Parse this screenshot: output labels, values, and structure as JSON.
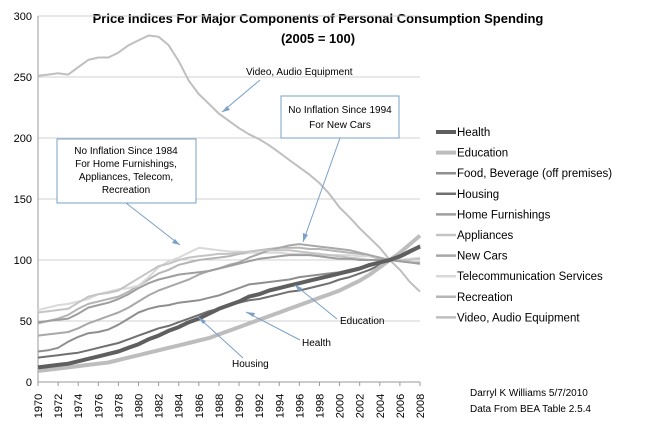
{
  "chart_data": {
    "type": "line",
    "title": "Price Indices For Major Components of Personal Consumption Spending",
    "subtitle": "(2005 = 100)",
    "xlabel": "",
    "ylabel": "",
    "ylim": [
      0,
      300
    ],
    "y_ticks": [
      "0",
      "50",
      "100",
      "150",
      "200",
      "250",
      "300"
    ],
    "x": [
      1970,
      1971,
      1972,
      1973,
      1974,
      1975,
      1976,
      1977,
      1978,
      1979,
      1980,
      1981,
      1982,
      1983,
      1984,
      1985,
      1986,
      1987,
      1988,
      1989,
      1990,
      1991,
      1992,
      1993,
      1994,
      1995,
      1996,
      1997,
      1998,
      1999,
      2000,
      2001,
      2002,
      2003,
      2004,
      2005,
      2006,
      2007,
      2008
    ],
    "x_ticks": [
      "1970",
      "1972",
      "1974",
      "1976",
      "1978",
      "1980",
      "1982",
      "1984",
      "1986",
      "1988",
      "1990",
      "1992",
      "1994",
      "1996",
      "1998",
      "2000",
      "2002",
      "2004",
      "2006",
      "2008"
    ],
    "grid": true,
    "legend_position": "right",
    "series": [
      {
        "name": "Health",
        "color": "#5f5f5f",
        "width": 4,
        "values": [
          12,
          13,
          14,
          15,
          17,
          19,
          21,
          23,
          25,
          28,
          31,
          35,
          38,
          42,
          45,
          49,
          52,
          56,
          60,
          63,
          66,
          70,
          72,
          75,
          77,
          79,
          81,
          83,
          85,
          87,
          89,
          91,
          93,
          96,
          98,
          100,
          103,
          107,
          111
        ]
      },
      {
        "name": "Education",
        "color": "#bdbdbd",
        "width": 4,
        "values": [
          9,
          10,
          11,
          12,
          13,
          14,
          15,
          16,
          18,
          20,
          22,
          24,
          26,
          28,
          30,
          32,
          34,
          36,
          39,
          42,
          45,
          48,
          51,
          54,
          57,
          60,
          63,
          66,
          69,
          72,
          75,
          79,
          83,
          88,
          94,
          100,
          106,
          113,
          120
        ]
      },
      {
        "name": "Food, Beverage (off premises)",
        "color": "#8f8f8f",
        "width": 2,
        "values": [
          25,
          26,
          28,
          33,
          37,
          40,
          41,
          43,
          47,
          52,
          57,
          60,
          62,
          63,
          65,
          66,
          67,
          69,
          71,
          74,
          77,
          80,
          81,
          82,
          83,
          84,
          86,
          87,
          88,
          89,
          90,
          92,
          93,
          95,
          98,
          100,
          102,
          106,
          112
        ]
      },
      {
        "name": "Housing",
        "color": "#707070",
        "width": 2,
        "values": [
          20,
          21,
          22,
          23,
          24,
          26,
          28,
          30,
          32,
          35,
          38,
          41,
          44,
          46,
          49,
          52,
          55,
          58,
          60,
          63,
          65,
          67,
          68,
          70,
          72,
          74,
          75,
          77,
          79,
          81,
          84,
          86,
          89,
          92,
          96,
          100,
          104,
          108,
          112
        ]
      },
      {
        "name": "Home Furnishings",
        "color": "#9e9e9e",
        "width": 2,
        "values": [
          49,
          50,
          51,
          52,
          56,
          61,
          63,
          65,
          68,
          72,
          77,
          81,
          84,
          86,
          88,
          89,
          90,
          91,
          93,
          95,
          97,
          99,
          101,
          102,
          103,
          104,
          104,
          104,
          103,
          102,
          101,
          101,
          100,
          100,
          100,
          100,
          99,
          98,
          97
        ]
      },
      {
        "name": "Appliances",
        "color": "#c4c4c4",
        "width": 2,
        "values": [
          57,
          58,
          59,
          60,
          65,
          70,
          72,
          73,
          75,
          80,
          85,
          90,
          95,
          97,
          100,
          102,
          103,
          104,
          105,
          105,
          106,
          107,
          108,
          108,
          108,
          108,
          107,
          106,
          105,
          104,
          103,
          102,
          101,
          100,
          100,
          100,
          100,
          100,
          101
        ]
      },
      {
        "name": "New Cars",
        "color": "#a8a8a8",
        "width": 2,
        "values": [
          38,
          39,
          40,
          41,
          44,
          48,
          51,
          54,
          57,
          61,
          66,
          71,
          75,
          78,
          81,
          84,
          88,
          91,
          93,
          96,
          98,
          102,
          105,
          108,
          110,
          112,
          113,
          112,
          111,
          110,
          109,
          108,
          106,
          104,
          102,
          100,
          99,
          98,
          97
        ]
      },
      {
        "name": "Telecommunication Services",
        "color": "#d9d9d9",
        "width": 2,
        "values": [
          59,
          61,
          63,
          64,
          66,
          68,
          72,
          74,
          76,
          77,
          79,
          86,
          94,
          99,
          102,
          106,
          110,
          109,
          108,
          107,
          107,
          106,
          106,
          106,
          106,
          105,
          105,
          105,
          104,
          104,
          104,
          104,
          103,
          103,
          102,
          100,
          100,
          101,
          102
        ]
      },
      {
        "name": "Recreation",
        "color": "#b5b5b5",
        "width": 2,
        "values": [
          48,
          50,
          52,
          55,
          60,
          64,
          66,
          68,
          70,
          74,
          79,
          84,
          89,
          92,
          96,
          98,
          100,
          101,
          102,
          103,
          105,
          106,
          108,
          109,
          110,
          110,
          110,
          109,
          109,
          108,
          107,
          106,
          105,
          103,
          101,
          100,
          99,
          98,
          98
        ]
      },
      {
        "name": "Video, Audio Equipment",
        "color": "#bfbfbf",
        "width": 2,
        "values": [
          251,
          252,
          253,
          252,
          258,
          264,
          266,
          266,
          270,
          276,
          280,
          284,
          283,
          276,
          263,
          247,
          236,
          228,
          220,
          214,
          208,
          203,
          199,
          194,
          188,
          182,
          176,
          170,
          163,
          154,
          143,
          135,
          126,
          118,
          110,
          100,
          92,
          82,
          74
        ]
      }
    ]
  },
  "annotations": {
    "video": "Video, Audio Equipment",
    "newcars_line1": "No Inflation Since 1994",
    "newcars_line2": "For New Cars",
    "home_line1": "No Inflation Since 1984",
    "home_line2": "For Home Furnishings,",
    "home_line3": "Appliances, Telecom,",
    "home_line4": "Recreation",
    "education": "Education",
    "health": "Health",
    "housing": "Housing"
  },
  "credit": {
    "line1": "Darryl K Williams 5/7/2010",
    "line2": "Data From BEA Table 2.5.4"
  }
}
